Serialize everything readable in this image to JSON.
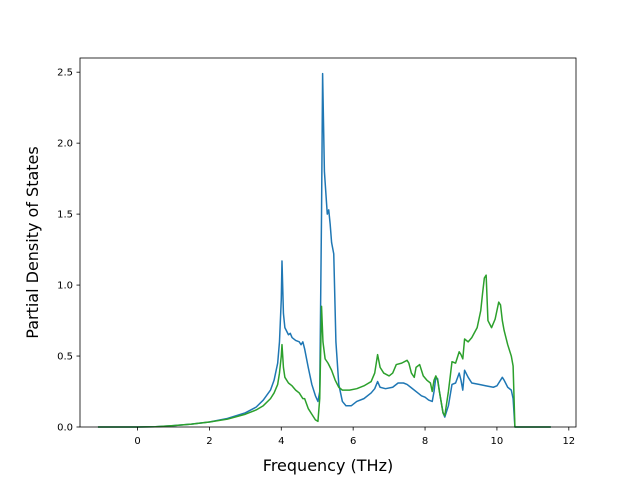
{
  "chart_data": {
    "type": "line",
    "title": "",
    "xlabel": "Frequency (THz)",
    "ylabel": "Partial Density of States",
    "xlim": [
      -1.6,
      12.2
    ],
    "ylim": [
      0.0,
      2.6
    ],
    "xticks": [
      0,
      2,
      4,
      6,
      8,
      10,
      12
    ],
    "yticks": [
      0.0,
      0.5,
      1.0,
      1.5,
      2.0,
      2.5
    ],
    "grid": false,
    "series": [
      {
        "color": "#1f77b4",
        "points": [
          [
            -1.1,
            0.0
          ],
          [
            0.0,
            0.0
          ],
          [
            0.5,
            0.002
          ],
          [
            1.0,
            0.01
          ],
          [
            1.5,
            0.02
          ],
          [
            2.0,
            0.035
          ],
          [
            2.5,
            0.06
          ],
          [
            3.0,
            0.1
          ],
          [
            3.3,
            0.14
          ],
          [
            3.5,
            0.19
          ],
          [
            3.7,
            0.26
          ],
          [
            3.8,
            0.33
          ],
          [
            3.9,
            0.45
          ],
          [
            3.95,
            0.6
          ],
          [
            4.0,
            0.9
          ],
          [
            4.02,
            1.17
          ],
          [
            4.06,
            0.8
          ],
          [
            4.1,
            0.7
          ],
          [
            4.2,
            0.65
          ],
          [
            4.25,
            0.66
          ],
          [
            4.3,
            0.63
          ],
          [
            4.4,
            0.61
          ],
          [
            4.5,
            0.6
          ],
          [
            4.55,
            0.58
          ],
          [
            4.6,
            0.6
          ],
          [
            4.65,
            0.55
          ],
          [
            4.75,
            0.42
          ],
          [
            4.85,
            0.3
          ],
          [
            4.95,
            0.22
          ],
          [
            5.02,
            0.18
          ],
          [
            5.07,
            0.25
          ],
          [
            5.12,
            1.5
          ],
          [
            5.15,
            2.49
          ],
          [
            5.2,
            1.8
          ],
          [
            5.28,
            1.5
          ],
          [
            5.32,
            1.53
          ],
          [
            5.36,
            1.43
          ],
          [
            5.4,
            1.3
          ],
          [
            5.46,
            1.22
          ],
          [
            5.52,
            0.6
          ],
          [
            5.6,
            0.3
          ],
          [
            5.7,
            0.18
          ],
          [
            5.8,
            0.15
          ],
          [
            5.95,
            0.15
          ],
          [
            6.1,
            0.18
          ],
          [
            6.3,
            0.2
          ],
          [
            6.5,
            0.24
          ],
          [
            6.6,
            0.27
          ],
          [
            6.68,
            0.32
          ],
          [
            6.75,
            0.28
          ],
          [
            6.9,
            0.27
          ],
          [
            7.1,
            0.28
          ],
          [
            7.25,
            0.31
          ],
          [
            7.4,
            0.31
          ],
          [
            7.5,
            0.3
          ],
          [
            7.6,
            0.28
          ],
          [
            7.8,
            0.24
          ],
          [
            7.9,
            0.22
          ],
          [
            8.0,
            0.21
          ],
          [
            8.1,
            0.19
          ],
          [
            8.2,
            0.18
          ],
          [
            8.25,
            0.25
          ],
          [
            8.3,
            0.35
          ],
          [
            8.35,
            0.34
          ],
          [
            8.4,
            0.25
          ],
          [
            8.5,
            0.1
          ],
          [
            8.55,
            0.07
          ],
          [
            8.65,
            0.15
          ],
          [
            8.75,
            0.3
          ],
          [
            8.85,
            0.31
          ],
          [
            8.95,
            0.38
          ],
          [
            9.0,
            0.33
          ],
          [
            9.05,
            0.26
          ],
          [
            9.1,
            0.4
          ],
          [
            9.2,
            0.35
          ],
          [
            9.3,
            0.31
          ],
          [
            9.5,
            0.3
          ],
          [
            9.7,
            0.29
          ],
          [
            9.9,
            0.28
          ],
          [
            10.0,
            0.29
          ],
          [
            10.1,
            0.33
          ],
          [
            10.15,
            0.35
          ],
          [
            10.2,
            0.33
          ],
          [
            10.3,
            0.28
          ],
          [
            10.4,
            0.26
          ],
          [
            10.45,
            0.2
          ],
          [
            10.5,
            0.0
          ],
          [
            11.5,
            0.0
          ]
        ]
      },
      {
        "color": "#2ca02c",
        "points": [
          [
            -1.1,
            0.0
          ],
          [
            0.0,
            0.0
          ],
          [
            0.5,
            0.002
          ],
          [
            1.0,
            0.01
          ],
          [
            1.5,
            0.02
          ],
          [
            2.0,
            0.035
          ],
          [
            2.5,
            0.055
          ],
          [
            3.0,
            0.09
          ],
          [
            3.3,
            0.12
          ],
          [
            3.5,
            0.15
          ],
          [
            3.7,
            0.2
          ],
          [
            3.8,
            0.24
          ],
          [
            3.9,
            0.3
          ],
          [
            3.95,
            0.38
          ],
          [
            4.0,
            0.5
          ],
          [
            4.02,
            0.58
          ],
          [
            4.06,
            0.42
          ],
          [
            4.1,
            0.35
          ],
          [
            4.2,
            0.31
          ],
          [
            4.3,
            0.29
          ],
          [
            4.4,
            0.26
          ],
          [
            4.5,
            0.24
          ],
          [
            4.6,
            0.2
          ],
          [
            4.65,
            0.2
          ],
          [
            4.75,
            0.13
          ],
          [
            4.85,
            0.09
          ],
          [
            4.95,
            0.05
          ],
          [
            5.02,
            0.04
          ],
          [
            5.07,
            0.2
          ],
          [
            5.12,
            0.85
          ],
          [
            5.16,
            0.6
          ],
          [
            5.22,
            0.48
          ],
          [
            5.3,
            0.45
          ],
          [
            5.4,
            0.4
          ],
          [
            5.5,
            0.33
          ],
          [
            5.6,
            0.28
          ],
          [
            5.7,
            0.26
          ],
          [
            5.9,
            0.26
          ],
          [
            6.1,
            0.27
          ],
          [
            6.3,
            0.29
          ],
          [
            6.5,
            0.32
          ],
          [
            6.6,
            0.38
          ],
          [
            6.68,
            0.51
          ],
          [
            6.75,
            0.42
          ],
          [
            6.85,
            0.38
          ],
          [
            7.0,
            0.36
          ],
          [
            7.1,
            0.38
          ],
          [
            7.2,
            0.44
          ],
          [
            7.35,
            0.45
          ],
          [
            7.5,
            0.47
          ],
          [
            7.55,
            0.45
          ],
          [
            7.62,
            0.38
          ],
          [
            7.7,
            0.35
          ],
          [
            7.75,
            0.42
          ],
          [
            7.85,
            0.44
          ],
          [
            7.95,
            0.36
          ],
          [
            8.05,
            0.33
          ],
          [
            8.15,
            0.31
          ],
          [
            8.2,
            0.25
          ],
          [
            8.25,
            0.33
          ],
          [
            8.3,
            0.36
          ],
          [
            8.35,
            0.33
          ],
          [
            8.4,
            0.25
          ],
          [
            8.5,
            0.1
          ],
          [
            8.55,
            0.08
          ],
          [
            8.65,
            0.25
          ],
          [
            8.75,
            0.46
          ],
          [
            8.85,
            0.45
          ],
          [
            8.95,
            0.53
          ],
          [
            9.0,
            0.51
          ],
          [
            9.05,
            0.48
          ],
          [
            9.1,
            0.62
          ],
          [
            9.2,
            0.6
          ],
          [
            9.3,
            0.63
          ],
          [
            9.45,
            0.7
          ],
          [
            9.55,
            0.82
          ],
          [
            9.6,
            0.94
          ],
          [
            9.65,
            1.05
          ],
          [
            9.7,
            1.07
          ],
          [
            9.75,
            0.75
          ],
          [
            9.85,
            0.7
          ],
          [
            9.95,
            0.76
          ],
          [
            10.05,
            0.88
          ],
          [
            10.1,
            0.86
          ],
          [
            10.15,
            0.75
          ],
          [
            10.2,
            0.68
          ],
          [
            10.3,
            0.58
          ],
          [
            10.4,
            0.5
          ],
          [
            10.45,
            0.43
          ],
          [
            10.5,
            0.0
          ],
          [
            11.5,
            0.0
          ]
        ]
      }
    ]
  }
}
